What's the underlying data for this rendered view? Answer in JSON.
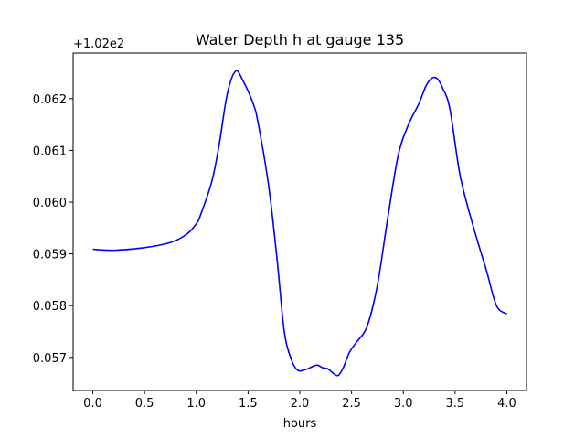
{
  "chart_data": {
    "type": "line",
    "title": "Water Depth h at gauge 135",
    "xlabel": "hours",
    "ylabel": "",
    "y_offset_label": "+1.02e2",
    "xlim": [
      -0.19,
      4.19
    ],
    "ylim": [
      0.05636,
      0.06288
    ],
    "x_ticks": [
      0.0,
      0.5,
      1.0,
      1.5,
      2.0,
      2.5,
      3.0,
      3.5,
      4.0
    ],
    "x_tick_labels": [
      "0.0",
      "0.5",
      "1.0",
      "1.5",
      "2.0",
      "2.5",
      "3.0",
      "3.5",
      "4.0"
    ],
    "y_ticks": [
      0.057,
      0.058,
      0.059,
      0.06,
      0.061,
      0.062
    ],
    "y_tick_labels": [
      "0.057",
      "0.058",
      "0.059",
      "0.060",
      "0.061",
      "0.062"
    ],
    "grid": false,
    "series": [
      {
        "color": "#0000ff",
        "x": [
          0.0,
          0.2,
          0.5,
          0.75,
          0.9,
          1.0,
          1.05,
          1.15,
          1.22,
          1.3,
          1.38,
          1.45,
          1.55,
          1.6,
          1.7,
          1.78,
          1.85,
          1.92,
          1.98,
          2.05,
          2.12,
          2.17,
          2.22,
          2.27,
          2.32,
          2.37,
          2.42,
          2.48,
          2.55,
          2.65,
          2.75,
          2.85,
          2.95,
          3.05,
          3.15,
          3.22,
          3.28,
          3.33,
          3.38,
          3.45,
          3.55,
          3.68,
          3.8,
          3.9,
          4.0
        ],
        "y": [
          0.05909,
          0.05907,
          0.05912,
          0.05922,
          0.05937,
          0.05958,
          0.0598,
          0.0604,
          0.0611,
          0.0621,
          0.06253,
          0.06235,
          0.0619,
          0.0615,
          0.0603,
          0.0589,
          0.0575,
          0.05695,
          0.05675,
          0.05676,
          0.05682,
          0.05685,
          0.0568,
          0.05678,
          0.0567,
          0.05665,
          0.0568,
          0.0571,
          0.0573,
          0.0576,
          0.0584,
          0.0597,
          0.0609,
          0.0615,
          0.0619,
          0.06225,
          0.0624,
          0.06238,
          0.0622,
          0.0618,
          0.0605,
          0.0595,
          0.0587,
          0.058,
          0.05784
        ]
      }
    ]
  }
}
